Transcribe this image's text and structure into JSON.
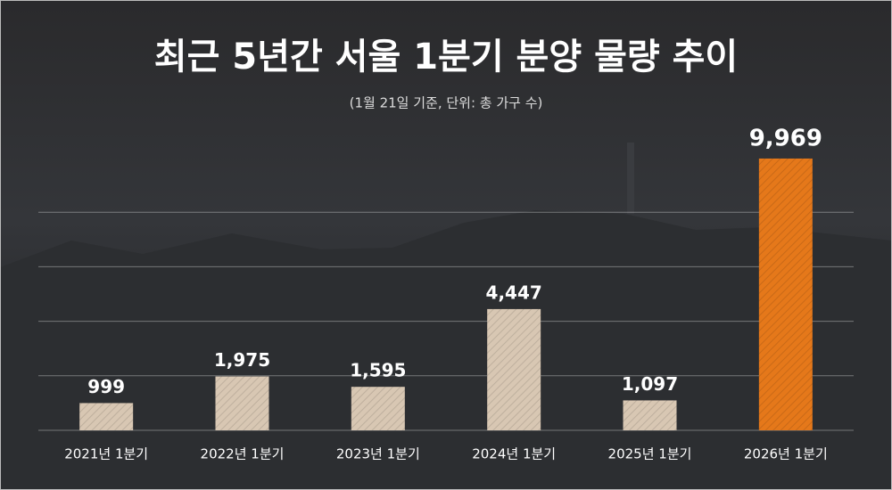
{
  "chart_data": {
    "type": "bar",
    "title": "최근 5년간 서울 1분기 분양 물량 추이",
    "subtitle": "(1월 21일 기준, 단위: 총 가구 수)",
    "categories": [
      "2021년 1분기",
      "2022년 1분기",
      "2023년 1분기",
      "2024년 1분기",
      "2025년 1분기",
      "2026년 1분기"
    ],
    "values": [
      999,
      1975,
      1595,
      4447,
      1097,
      9969
    ],
    "value_labels": [
      "999",
      "1,975",
      "1,595",
      "4,447",
      "1,097",
      "9,969"
    ],
    "colors": [
      "#d8c7b3",
      "#d8c7b3",
      "#d8c7b3",
      "#d8c7b3",
      "#d8c7b3",
      "#e5781a"
    ],
    "ylim": [
      0,
      10000
    ],
    "yticks": [
      0,
      2000,
      4000,
      6000,
      8000
    ],
    "grid": true
  }
}
